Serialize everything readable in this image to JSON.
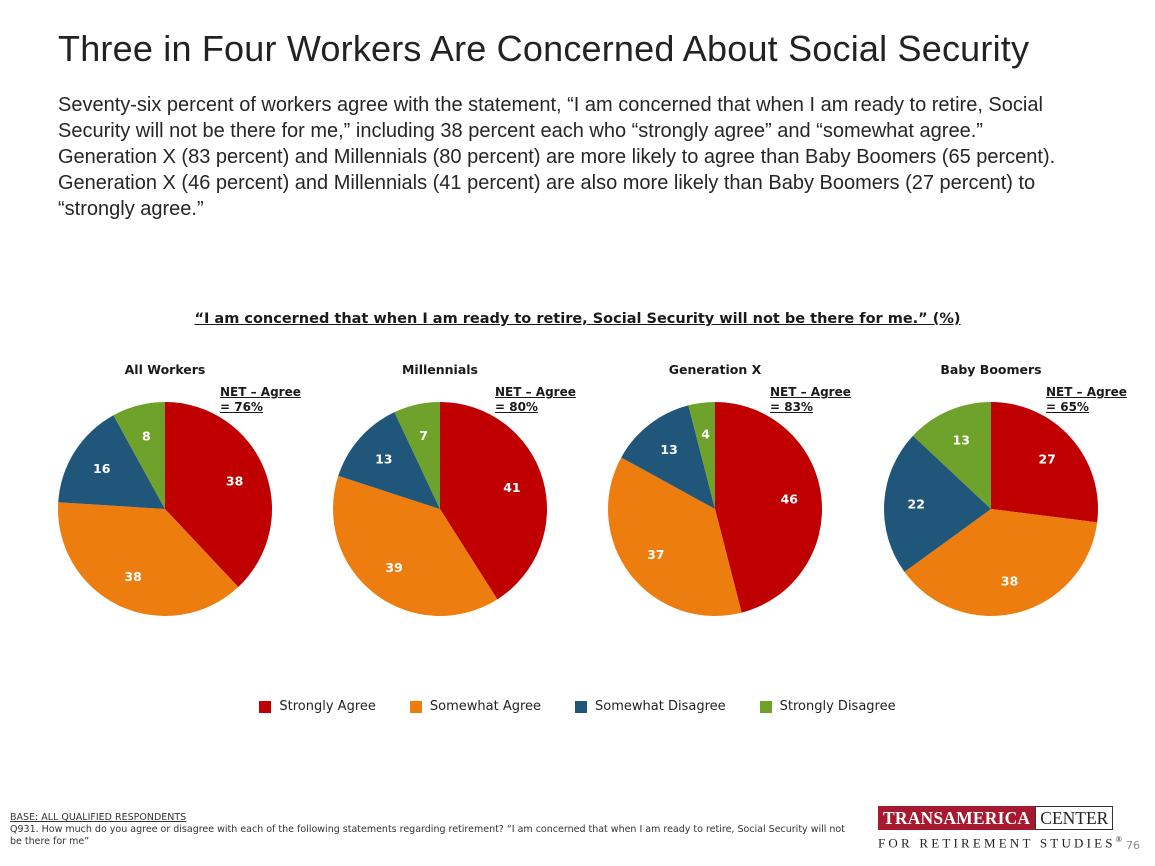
{
  "title": "Three in Four Workers Are Concerned About Social Security",
  "intro": "Seventy-six percent of workers agree with the statement, “I am concerned that when I am ready to retire, Social Security will not be there for me,” including 38 percent each who “strongly agree” and “somewhat agree.” Generation X (83 percent) and Millennials (80 percent) are more likely to agree than Baby Boomers (65 percent). Generation X (46 percent) and Millennials (41 percent) are also more likely than Baby Boomers (27 percent) to “strongly agree.”",
  "chart_data": {
    "type": "pie",
    "title": "“I am concerned that when I am ready to retire, Social Security will not be there for me.” (%)",
    "categories": [
      "Strongly Agree",
      "Somewhat Agree",
      "Somewhat Disagree",
      "Strongly Disagree"
    ],
    "colors": [
      "#c00000",
      "#ed7d0e",
      "#1f567a",
      "#6fa22a"
    ],
    "legend_position": "bottom",
    "pies": [
      {
        "name": "All Workers",
        "net_line1": "NET – Agree",
        "net_line2": "= 76%",
        "values": [
          38,
          38,
          16,
          8
        ]
      },
      {
        "name": "Millennials",
        "net_line1": "NET – Agree",
        "net_line2": "= 80%",
        "values": [
          41,
          39,
          13,
          7
        ]
      },
      {
        "name": "Generation X",
        "net_line1": "NET – Agree",
        "net_line2": "= 83%",
        "values": [
          46,
          37,
          13,
          4
        ]
      },
      {
        "name": "Baby Boomers",
        "net_line1": "NET – Agree",
        "net_line2": "= 65%",
        "values": [
          27,
          38,
          22,
          13
        ]
      }
    ]
  },
  "footer": {
    "base": "BASE:  ALL QUALIFIED RESPONDENTS",
    "question": "Q931. How much do you agree or disagree with each of the following statements regarding retirement? “I am concerned that when I am ready to retire, Social Security will not be there for me”"
  },
  "logo": {
    "word1": "TRANSAMERICA",
    "word2": "CENTER",
    "tagline": "FOR RETIREMENT STUDIES",
    "mark": "®"
  },
  "page_number": "76"
}
